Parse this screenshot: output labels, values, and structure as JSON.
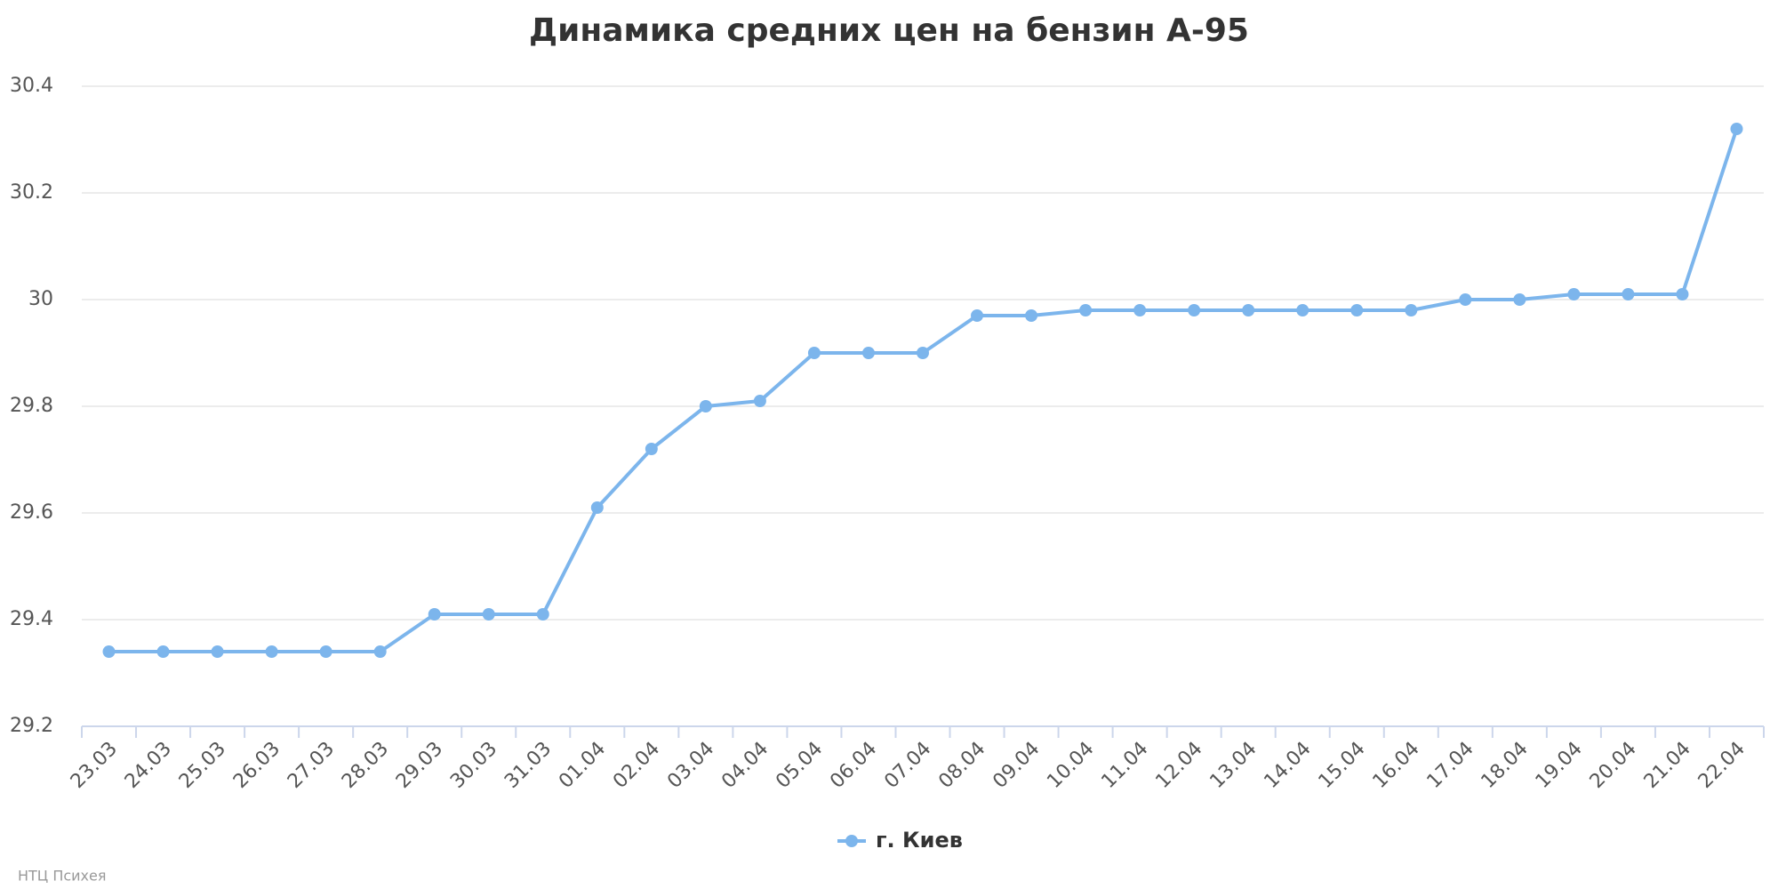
{
  "chart_data": {
    "type": "line",
    "title": "Динамика средних цен на бензин А-95",
    "categories": [
      "23.03",
      "24.03",
      "25.03",
      "26.03",
      "27.03",
      "28.03",
      "29.03",
      "30.03",
      "31.03",
      "01.04",
      "02.04",
      "03.04",
      "04.04",
      "05.04",
      "06.04",
      "07.04",
      "08.04",
      "09.04",
      "10.04",
      "11.04",
      "12.04",
      "13.04",
      "14.04",
      "15.04",
      "16.04",
      "17.04",
      "18.04",
      "19.04",
      "20.04",
      "21.04",
      "22.04"
    ],
    "series": [
      {
        "name": "г. Киев",
        "color": "#7cb5ec",
        "values": [
          29.34,
          29.34,
          29.34,
          29.34,
          29.34,
          29.34,
          29.41,
          29.41,
          29.41,
          29.61,
          29.72,
          29.8,
          29.81,
          29.9,
          29.9,
          29.9,
          29.97,
          29.97,
          29.98,
          29.98,
          29.98,
          29.98,
          29.98,
          29.98,
          29.98,
          30.0,
          30.0,
          30.01,
          30.01,
          30.01,
          30.32
        ]
      }
    ],
    "ylim": [
      29.2,
      30.4
    ],
    "yticks": [
      29.2,
      29.4,
      29.6,
      29.8,
      30,
      30.2,
      30.4
    ],
    "grid": true,
    "legend": "bottom",
    "credits": "НТЦ Психея"
  }
}
